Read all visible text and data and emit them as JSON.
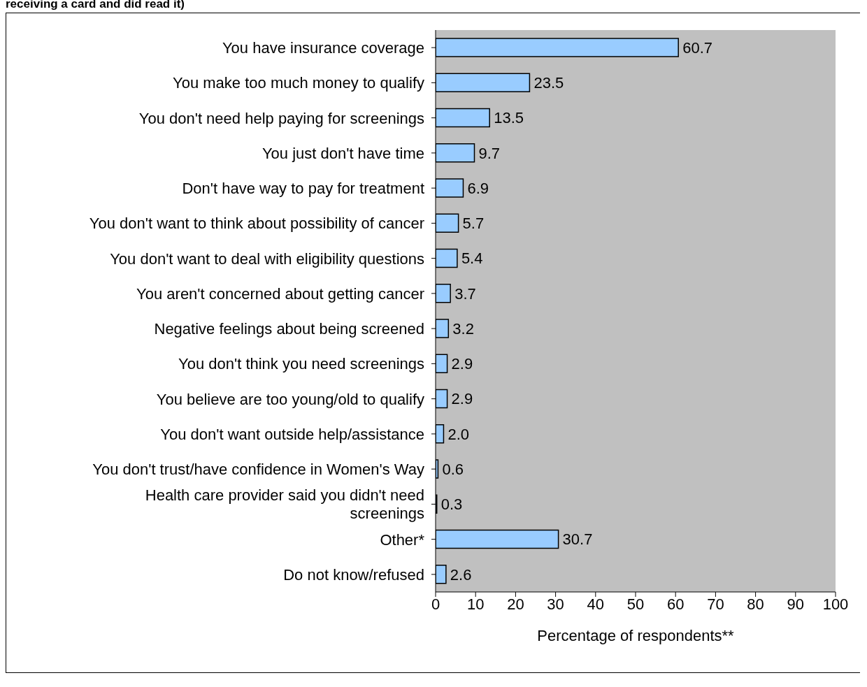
{
  "chart_data": {
    "type": "bar",
    "title": "receiving a card and did read it)",
    "orientation": "horizontal",
    "categories": [
      "You have insurance coverage",
      "You  make too much money to qualify",
      "You don't need help paying for screenings",
      "You just don't have time",
      "Don't have way to pay for treatment",
      "You don't want to think about possibility of cancer",
      "You don't want to deal with eligibility questions",
      "You aren't concerned about getting cancer",
      "Negative feelings about being screened",
      "You don't think you need screenings",
      "You believe are too young/old to qualify",
      "You don't want outside help/assistance",
      "You don't trust/have confidence in Women's Way",
      "Health care provider said you didn't need screenings",
      "Other*",
      "Do not know/refused"
    ],
    "values": [
      60.7,
      23.5,
      13.5,
      9.7,
      6.9,
      5.7,
      5.4,
      3.7,
      3.2,
      2.9,
      2.9,
      2.0,
      0.6,
      0.3,
      30.7,
      2.6
    ],
    "value_labels": [
      "60.7",
      "23.5",
      "13.5",
      "9.7",
      "6.9",
      "5.7",
      "5.4",
      "3.7",
      "3.2",
      "2.9",
      "2.9",
      "2.0",
      "0.6",
      "0.3",
      "30.7",
      "2.6"
    ],
    "color": "#99ccff",
    "xlabel": "Percentage of respondents**",
    "xlim": [
      0,
      100
    ],
    "xticks": [
      0,
      10,
      20,
      30,
      40,
      50,
      60,
      70,
      80,
      90,
      100
    ]
  }
}
